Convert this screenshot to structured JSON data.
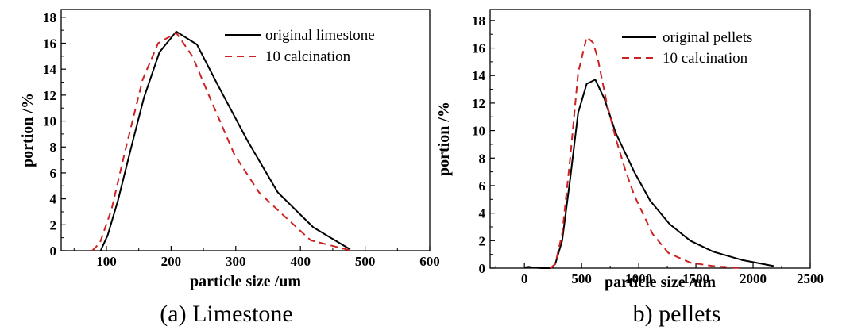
{
  "chart_data": [
    {
      "type": "line",
      "caption": "(a) Limestone",
      "xlabel": "particle size /um",
      "ylabel": "portion /%",
      "xlim": [
        30,
        600
      ],
      "ylim": [
        0,
        18.6
      ],
      "xticks": [
        100,
        200,
        300,
        400,
        500,
        600
      ],
      "yticks": [
        0,
        2,
        4,
        6,
        8,
        10,
        12,
        14,
        16,
        18
      ],
      "legend_position": "top-right",
      "grid": false,
      "series": [
        {
          "name": "original limestone",
          "style": "solid",
          "color": "#000000",
          "x": [
            91,
            102,
            118,
            138,
            158,
            182,
            208,
            240,
            272,
            318,
            365,
            420,
            477
          ],
          "y": [
            0,
            1.2,
            3.9,
            7.9,
            11.8,
            15.3,
            16.9,
            15.9,
            12.8,
            8.5,
            4.5,
            1.8,
            0.1
          ]
        },
        {
          "name": "10 calcination",
          "style": "dashed",
          "color": "#cc2222",
          "x": [
            78,
            90,
            108,
            128,
            156,
            180,
            208,
            233,
            260,
            298,
            336,
            370,
            416,
            475
          ],
          "y": [
            0,
            0.6,
            3.2,
            7.5,
            13.2,
            16.0,
            16.8,
            15.0,
            11.8,
            7.4,
            4.5,
            2.9,
            0.8,
            0.05
          ]
        }
      ]
    },
    {
      "type": "line",
      "caption": "b) pellets",
      "xlabel": "particle size /um",
      "ylabel": "portion /%",
      "xlim": [
        -300,
        2500
      ],
      "ylim": [
        0,
        18.8
      ],
      "xticks": [
        0,
        500,
        1000,
        1500,
        2000,
        2500
      ],
      "yticks": [
        0,
        2,
        4,
        6,
        8,
        10,
        12,
        14,
        16,
        18
      ],
      "legend_position": "top-right",
      "grid": false,
      "series": [
        {
          "name": "original pellets",
          "style": "solid",
          "color": "#000000",
          "x": [
            0,
            40,
            70,
            150,
            230,
            270,
            330,
            400,
            470,
            545,
            620,
            700,
            800,
            960,
            1100,
            1270,
            1450,
            1650,
            1900,
            2180
          ],
          "y": [
            0.05,
            0.1,
            0.05,
            0.0,
            0.0,
            0.3,
            2.0,
            6.5,
            11.3,
            13.4,
            13.7,
            12.3,
            9.8,
            7.0,
            4.9,
            3.2,
            2.0,
            1.2,
            0.6,
            0.15
          ]
        },
        {
          "name": "10 calcination",
          "style": "dashed",
          "color": "#cc2222",
          "x": [
            230,
            270,
            330,
            400,
            470,
            545,
            600,
            640,
            720,
            800,
            880,
            960,
            1040,
            1120,
            1260,
            1450,
            1650,
            1800,
            1920
          ],
          "y": [
            0.0,
            0.3,
            2.5,
            8.0,
            14.2,
            16.8,
            16.4,
            15.3,
            12.0,
            9.4,
            7.2,
            5.3,
            3.9,
            2.5,
            1.1,
            0.4,
            0.15,
            0.05,
            0.0
          ]
        }
      ]
    }
  ]
}
